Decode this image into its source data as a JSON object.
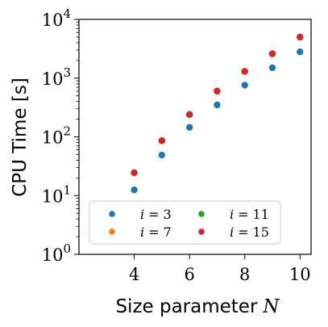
{
  "chart_data": {
    "type": "scatter",
    "xlabel_text": "Size parameter",
    "xlabel_var": "N",
    "ylabel": "CPU Time [s]",
    "x_ticks": [
      4,
      6,
      8,
      10
    ],
    "y_ticks": [
      {
        "value": 1,
        "base": "10",
        "exp": "0"
      },
      {
        "value": 10,
        "base": "10",
        "exp": "1"
      },
      {
        "value": 100,
        "base": "10",
        "exp": "2"
      },
      {
        "value": 1000,
        "base": "10",
        "exp": "3"
      },
      {
        "value": 10000,
        "base": "10",
        "exp": "4"
      }
    ],
    "xlim": [
      2.0,
      10.4
    ],
    "ylim": [
      1,
      10000
    ],
    "yscale": "log",
    "grid": false,
    "legend_position": "lower-left",
    "series": [
      {
        "label_var": "i",
        "label_value": "3",
        "color": "#1f77b4",
        "x": [
          4,
          5,
          6,
          7,
          8,
          9,
          10
        ],
        "y": [
          12.5,
          49,
          145,
          350,
          760,
          1500,
          2800
        ]
      },
      {
        "label_var": "i",
        "label_value": "7",
        "color": "#ff7f0e",
        "x": [
          4,
          5,
          6,
          7,
          8,
          9,
          10
        ],
        "y": [
          24.5,
          86,
          240,
          600,
          1300,
          2600,
          5000
        ]
      },
      {
        "label_var": "i",
        "label_value": "11",
        "color": "#2ca02c",
        "x": [
          4,
          5,
          6,
          7,
          8,
          9,
          10
        ],
        "y": [
          24.5,
          86,
          240,
          600,
          1300,
          2600,
          5000
        ]
      },
      {
        "label_var": "i",
        "label_value": "15",
        "color": "#d62728",
        "x": [
          4,
          5,
          6,
          7,
          8,
          9,
          10
        ],
        "y": [
          24.5,
          86,
          240,
          600,
          1300,
          2600,
          5000
        ]
      }
    ]
  }
}
